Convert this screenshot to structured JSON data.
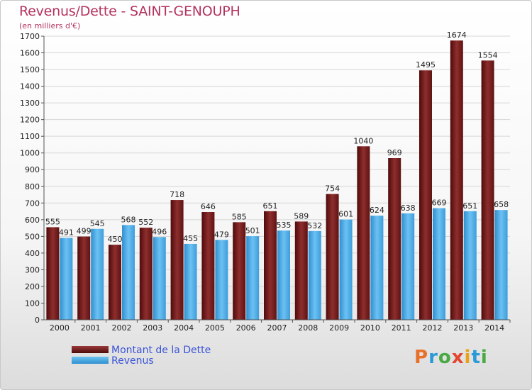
{
  "title": "Revenus/Dette - SAINT-GENOUPH",
  "subtitle": "(en milliers d'€)",
  "logo": "Proxiti",
  "colors": {
    "title": "#b5335d",
    "dette": "#7a1f1f",
    "revenus": "#4aa8e6",
    "legend_text": "#3b54d6"
  },
  "chart_data": {
    "type": "bar",
    "title": "Revenus/Dette - SAINT-GENOUPH",
    "subtitle": "(en milliers d'€)",
    "categories": [
      "2000",
      "2001",
      "2002",
      "2003",
      "2004",
      "2005",
      "2006",
      "2007",
      "2008",
      "2009",
      "2010",
      "2011",
      "2012",
      "2013",
      "2014"
    ],
    "series": [
      {
        "name": "Montant de la Dette",
        "values": [
          555,
          499,
          450,
          552,
          718,
          646,
          585,
          651,
          589,
          754,
          1040,
          969,
          1495,
          1674,
          1554
        ]
      },
      {
        "name": "Revenus",
        "values": [
          491,
          545,
          568,
          496,
          455,
          479,
          501,
          535,
          532,
          601,
          624,
          638,
          669,
          651,
          658
        ]
      }
    ],
    "ylim": [
      0,
      1700
    ],
    "yticks": [
      0,
      100,
      200,
      300,
      400,
      500,
      600,
      700,
      800,
      900,
      1000,
      1100,
      1200,
      1300,
      1400,
      1500,
      1600,
      1700
    ],
    "grid": true,
    "legend": "bottom-left"
  }
}
